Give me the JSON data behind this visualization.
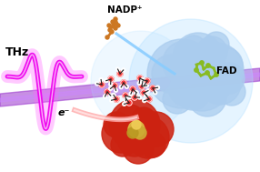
{
  "bg_color": "#ffffff",
  "thz_label": "THz",
  "nadp_label": "NADP⁺",
  "fad_label": "FAD",
  "e_label": "e⁻",
  "magenta_wave_color": "#ee00ee",
  "magenta_wave_glow": "#ff66ff",
  "purple_beam_color": "#9933cc",
  "protein_blue_color": "#aaccee",
  "protein_red_color": "#cc2211",
  "fad_molecule_color": "#88bb22",
  "nadp_molecule_color": "#cc7722",
  "figsize": [
    2.86,
    1.89
  ],
  "dpi": 100
}
